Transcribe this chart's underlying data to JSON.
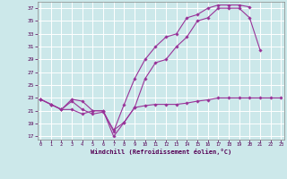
{
  "xlabel": "Windchill (Refroidissement éolien,°C)",
  "bg_color": "#cce8ea",
  "grid_color": "#ffffff",
  "line_color": "#993399",
  "x": [
    0,
    1,
    2,
    3,
    4,
    5,
    6,
    7,
    8,
    9,
    10,
    11,
    12,
    13,
    14,
    15,
    16,
    17,
    18,
    19,
    20,
    21,
    22,
    23
  ],
  "line1": [
    22.8,
    22.0,
    21.2,
    21.2,
    20.5,
    21.0,
    21.0,
    17.0,
    19.2,
    21.5,
    21.8,
    22.0,
    22.0,
    22.0,
    22.2,
    22.5,
    22.7,
    23.0,
    23.0,
    23.0,
    23.0,
    23.0,
    23.0,
    23.0
  ],
  "line2": [
    22.8,
    22.0,
    21.2,
    22.5,
    21.2,
    20.5,
    20.8,
    18.0,
    19.2,
    21.5,
    26.0,
    28.5,
    29.0,
    31.0,
    32.5,
    35.0,
    35.5,
    37.0,
    37.0,
    37.0,
    35.5,
    30.5,
    null,
    null
  ],
  "line3": [
    22.8,
    22.0,
    21.2,
    22.8,
    22.5,
    21.0,
    21.0,
    17.8,
    22.0,
    26.0,
    29.0,
    31.0,
    32.5,
    33.0,
    35.5,
    36.0,
    37.0,
    37.5,
    37.5,
    37.5,
    37.2,
    null,
    null,
    null
  ],
  "ylim": [
    16.5,
    38.0
  ],
  "yticks": [
    17,
    19,
    21,
    23,
    25,
    27,
    29,
    31,
    33,
    35,
    37
  ],
  "xlim": [
    -0.3,
    23.3
  ],
  "xticks": [
    0,
    1,
    2,
    3,
    4,
    5,
    6,
    7,
    8,
    9,
    10,
    11,
    12,
    13,
    14,
    15,
    16,
    17,
    18,
    19,
    20,
    21,
    22,
    23
  ]
}
